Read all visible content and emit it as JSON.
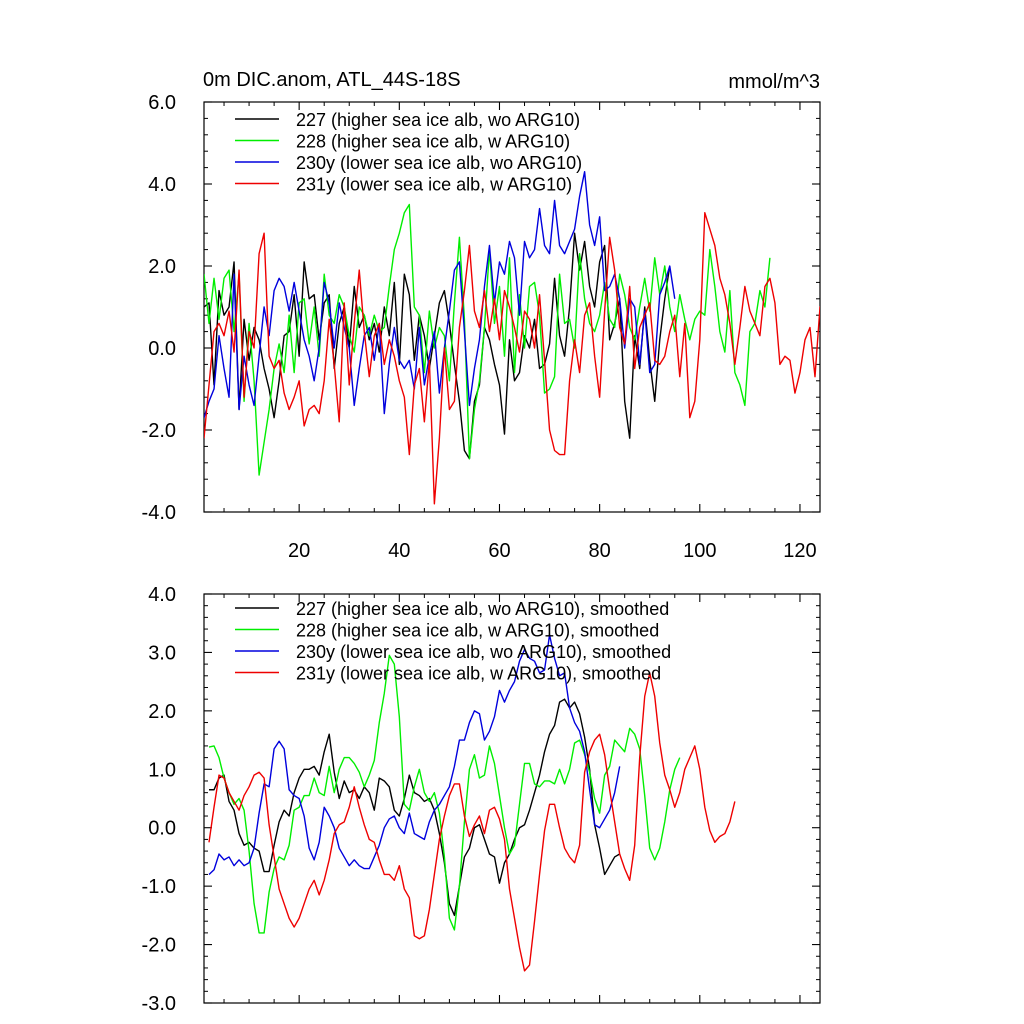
{
  "figure": {
    "title": "0m DIC.anom, ATL_44S-18S",
    "units": "mmol/m^3"
  },
  "chart_data": [
    {
      "type": "line",
      "title": "0m DIC.anom, ATL_44S-18S",
      "units_label": "mmol/m^3",
      "xlim": [
        1,
        124
      ],
      "ylim": [
        -4.0,
        6.0
      ],
      "x_ticks": [
        20,
        40,
        60,
        80,
        100,
        120
      ],
      "x_tick_labels": [
        "20",
        "40",
        "60",
        "80",
        "100",
        "120"
      ],
      "y_ticks": [
        -4.0,
        -2.0,
        0.0,
        2.0,
        4.0,
        6.0
      ],
      "y_tick_labels": [
        "-4.0",
        "-2.0",
        "0.0",
        "2.0",
        "4.0",
        "6.0"
      ],
      "legend_position": "top-left",
      "series": [
        {
          "name": "227 (higher sea ice alb, wo ARG10)",
          "color": "#000000",
          "x_start": 1,
          "values": [
            1.0,
            1.1,
            -0.9,
            1.4,
            0.8,
            1.0,
            2.1,
            -1.5,
            0.7,
            -0.3,
            0.5,
            0.2,
            -0.5,
            -1.0,
            -1.7,
            -0.8,
            0.3,
            0.4,
            1.3,
            -0.2,
            2.1,
            1.2,
            1.3,
            0.2,
            1.1,
            1.3,
            -0.5,
            0.6,
            1.0,
            0.0,
            1.5,
            0.5,
            0.8,
            0.2,
            0.6,
            -0.1,
            1.0,
            0.3,
            1.6,
            -0.4,
            1.8,
            1.3,
            -0.3,
            0.8,
            0.3,
            -0.5,
            0.3,
            1.1,
            1.4,
            0.6,
            -0.4,
            -1.3,
            -2.5,
            -2.7,
            -1.3,
            -0.9,
            0.5,
            0.2,
            -0.4,
            -0.9,
            -2.1,
            0.2,
            -0.8,
            -0.6,
            0.3,
            0.0,
            0.7,
            -0.5,
            -0.4,
            0.1,
            1.7,
            0.3,
            -0.2,
            1.0,
            2.8,
            1.9,
            2.6,
            1.5,
            1.0,
            2.1,
            2.5,
            0.2,
            0.6,
            1.2,
            -1.3,
            -2.2,
            0.3,
            -0.5,
            1.0,
            -0.3,
            -1.3,
            0.2,
            1.2,
            2.0
          ]
        },
        {
          "name": "228 (higher sea ice alb, w ARG10)",
          "color": "#00ee00",
          "x_start": 1,
          "values": [
            1.8,
            0.6,
            1.7,
            0.7,
            1.7,
            1.9,
            0.4,
            1.8,
            -1.3,
            0.6,
            -0.8,
            -3.1,
            -2.3,
            -1.5,
            -0.5,
            0.1,
            -0.6,
            0.8,
            -0.6,
            1.1,
            1.2,
            0.1,
            1.0,
            -0.2,
            1.8,
            0.8,
            0.6,
            1.3,
            1.0,
            0.3,
            -0.1,
            1.0,
            0.8,
            0.3,
            0.8,
            0.4,
            0.5,
            1.5,
            2.4,
            2.8,
            3.3,
            3.5,
            1.0,
            0.8,
            -0.6,
            0.9,
            0.0,
            0.5,
            0.3,
            -0.8,
            1.1,
            2.7,
            0.7,
            -2.7,
            -1.5,
            -0.8,
            0.5,
            2.4,
            0.6,
            1.5,
            -0.2,
            2.2,
            -0.6,
            1.3,
            0.0,
            1.5,
            1.6,
            0.8,
            -1.1,
            -1.0,
            -0.7,
            1.8,
            0.6,
            0.7,
            0.0,
            2.3,
            1.2,
            0.6,
            0.4,
            0.8,
            1.6,
            0.7,
            0.5,
            1.8,
            1.3,
            0.5,
            0.2,
            1.0,
            1.7,
            0.9,
            2.2,
            1.3,
            2.0,
            1.0,
            0.4,
            1.3,
            0.7,
            0.2,
            0.7,
            0.9,
            0.8,
            2.4,
            1.5,
            0.4,
            -0.1,
            1.4,
            -0.6,
            -0.9,
            -1.4,
            0.4,
            0.6,
            1.4,
            1.0,
            2.2
          ]
        },
        {
          "name": "230y (lower sea ice alb, wo ARG10)",
          "color": "#0000dd",
          "x_start": 1,
          "values": [
            -1.7,
            -1.3,
            -1.0,
            0.3,
            -0.5,
            -1.2,
            1.8,
            -1.5,
            -0.2,
            -0.9,
            -1.4,
            -0.2,
            1.0,
            0.3,
            1.4,
            1.7,
            1.5,
            0.9,
            1.6,
            0.9,
            0.2,
            -0.2,
            -0.8,
            0.0,
            1.6,
            1.1,
            0.0,
            1.1,
            0.5,
            0.0,
            -1.4,
            -0.5,
            0.3,
            0.5,
            -0.3,
            0.6,
            -1.6,
            -0.4,
            0.5,
            -0.3,
            -0.5,
            -0.3,
            -1.0,
            0.5,
            -0.9,
            -0.2,
            0.4,
            -1.1,
            0.0,
            0.9,
            1.9,
            2.1,
            0.4,
            -1.4,
            -0.5,
            0.2,
            1.5,
            2.5,
            1.1,
            2.1,
            1.8,
            2.6,
            2.2,
            0.8,
            2.6,
            2.2,
            2.4,
            3.4,
            2.5,
            2.3,
            3.6,
            2.5,
            2.3,
            2.6,
            2.9,
            3.7,
            4.3,
            3.0,
            2.5,
            3.2,
            1.4,
            1.5,
            1.8,
            1.2,
            0.0,
            1.2,
            1.0,
            -0.4,
            0.9,
            -0.6,
            -0.4,
            1.3,
            1.6,
            2.0,
            1.2
          ]
        },
        {
          "name": "231y (lower sea ice alb, w ARG10)",
          "color": "#ee0000",
          "x_start": 1,
          "values": [
            -2.2,
            -0.9,
            0.4,
            0.6,
            0.3,
            0.9,
            -0.1,
            1.9,
            -1.2,
            0.4,
            0.0,
            2.3,
            2.8,
            -0.2,
            -0.5,
            -0.3,
            -1.1,
            -1.5,
            -1.2,
            -0.8,
            -1.9,
            -1.5,
            -1.4,
            -1.6,
            -0.8,
            0.7,
            -0.4,
            -1.8,
            1.1,
            -0.9,
            0.6,
            1.9,
            0.4,
            -0.7,
            0.3,
            0.6,
            -0.4,
            0.2,
            -0.2,
            -0.8,
            -1.2,
            -2.6,
            -0.9,
            -0.5,
            -1.8,
            -0.3,
            -3.8,
            -2.2,
            0.0,
            -1.5,
            -1.3,
            0.5,
            1.4,
            2.5,
            0.9,
            0.5,
            1.4,
            0.4,
            1.2,
            0.2,
            1.4,
            1.0,
            0.5,
            -0.1,
            0.9,
            0.7,
            0.0,
            1.3,
            -0.3,
            -2.0,
            -2.5,
            -2.6,
            -2.6,
            -0.8,
            0.2,
            -0.6,
            0.8,
            1.1,
            -0.2,
            -1.2,
            0.9,
            2.7,
            1.9,
            0.5,
            0.1,
            1.5,
            -0.5,
            0.5,
            0.8,
            1.1,
            -0.3,
            -0.4,
            -0.2,
            0.4,
            0.8,
            -0.7,
            0.6,
            -1.7,
            -1.3,
            0.2,
            3.3,
            2.9,
            2.5,
            1.7,
            1.3,
            0.6,
            -0.4,
            0.5,
            1.5,
            0.9,
            0.6,
            0.3,
            1.5,
            1.7,
            1.1,
            -0.4,
            -0.2,
            -0.3,
            -1.1,
            -0.6,
            0.2,
            0.5,
            -0.7,
            1.0,
            0.8,
            0.8
          ]
        }
      ]
    },
    {
      "type": "line",
      "title": "",
      "xlim": [
        1,
        124
      ],
      "ylim": [
        -3.0,
        4.0
      ],
      "x_ticks": [
        20,
        40,
        60,
        80,
        100,
        120
      ],
      "x_tick_labels": [],
      "y_ticks": [
        -3.0,
        -2.0,
        -1.0,
        0.0,
        1.0,
        2.0,
        3.0,
        4.0
      ],
      "y_tick_labels": [
        "-3.0",
        "-2.0",
        "-1.0",
        "0.0",
        "1.0",
        "2.0",
        "3.0",
        "4.0"
      ],
      "legend_position": "top-left",
      "series": [
        {
          "name": "227 (higher sea ice alb, wo ARG10), smoothed",
          "color": "#000000",
          "x_start": 2,
          "values": [
            0.65,
            0.65,
            0.85,
            0.9,
            0.45,
            0.3,
            -0.1,
            -0.3,
            -0.25,
            -0.35,
            -0.4,
            -0.75,
            -0.75,
            -0.3,
            0.1,
            0.3,
            0.2,
            0.6,
            0.85,
            1.0,
            1.0,
            1.05,
            0.9,
            1.3,
            1.6,
            0.95,
            0.5,
            0.8,
            0.6,
            0.65,
            0.5,
            0.7,
            0.6,
            0.3,
            0.85,
            0.8,
            0.7,
            0.3,
            0.2,
            0.5,
            0.9,
            0.6,
            0.55,
            0.45,
            0.5,
            0.3,
            -0.1,
            -0.6,
            -1.3,
            -1.5,
            -1.0,
            -0.5,
            -0.35,
            0.0,
            0.05,
            -0.2,
            -0.45,
            -0.5,
            -0.95,
            -0.6,
            -0.45,
            -0.2,
            0.0,
            0.05,
            0.3,
            0.6,
            0.9,
            1.3,
            1.6,
            1.75,
            2.15,
            2.2,
            2.05,
            2.15,
            1.95,
            1.55,
            1.0,
            0.05,
            -0.35,
            -0.8,
            -0.65,
            -0.5,
            -0.45
          ]
        },
        {
          "name": "228 (higher sea ice alb, w ARG10), smoothed",
          "color": "#00ee00",
          "x_start": 2,
          "values": [
            1.38,
            1.4,
            1.2,
            0.85,
            0.6,
            0.4,
            0.5,
            0.3,
            -0.4,
            -1.3,
            -1.8,
            -1.8,
            -1.1,
            -0.7,
            -0.5,
            -0.55,
            -0.3,
            0.3,
            0.35,
            0.55,
            0.55,
            0.85,
            0.6,
            0.55,
            1.05,
            0.6,
            1.0,
            1.2,
            1.2,
            1.1,
            0.95,
            0.7,
            0.9,
            1.15,
            1.8,
            2.3,
            2.95,
            2.8,
            1.9,
            0.4,
            0.3,
            0.7,
            1.0,
            0.6,
            0.45,
            0.6,
            0.25,
            -0.5,
            -1.55,
            -1.75,
            -1.0,
            0.1,
            1.0,
            1.25,
            0.85,
            0.9,
            1.4,
            1.1,
            0.55,
            0.0,
            -0.45,
            -0.3,
            0.4,
            1.1,
            1.1,
            0.75,
            0.7,
            0.8,
            0.8,
            0.75,
            1.0,
            0.75,
            1.0,
            1.45,
            1.5,
            1.25,
            0.95,
            0.5,
            0.25,
            0.9,
            1.05,
            1.5,
            1.4,
            1.3,
            1.7,
            1.6,
            1.35,
            0.55,
            -0.35,
            -0.55,
            -0.35,
            0.1,
            0.65,
            1.0,
            1.2
          ]
        },
        {
          "name": "230y (lower sea ice alb, wo ARG10), smoothed",
          "color": "#0000dd",
          "x_start": 2,
          "values": [
            -0.8,
            -0.72,
            -0.45,
            -0.55,
            -0.5,
            -0.65,
            -0.55,
            -0.65,
            -0.6,
            -0.35,
            0.25,
            0.75,
            0.7,
            1.35,
            1.48,
            1.35,
            0.65,
            0.55,
            0.5,
            0.2,
            -0.35,
            -0.55,
            -0.25,
            0.35,
            0.2,
            0.0,
            -0.35,
            -0.5,
            -0.65,
            -0.55,
            -0.65,
            -0.7,
            -0.7,
            -0.5,
            -0.3,
            0.0,
            0.15,
            0.2,
            0.0,
            -0.1,
            0.25,
            -0.1,
            -0.15,
            -0.2,
            0.1,
            0.3,
            0.4,
            0.55,
            0.7,
            1.05,
            1.5,
            1.5,
            1.8,
            2.0,
            1.95,
            1.5,
            1.65,
            1.9,
            2.35,
            2.15,
            2.35,
            2.5,
            2.85,
            3.05,
            2.9,
            2.85,
            2.65,
            2.7,
            3.3,
            2.9,
            2.6,
            2.65,
            2.05,
            1.8,
            1.65,
            1.3,
            0.65,
            0.05,
            0.0,
            0.15,
            0.3,
            0.6,
            1.05
          ]
        },
        {
          "name": "231y (lower sea ice alb, w ARG10), smoothed",
          "color": "#ee0000",
          "x_start": 2,
          "values": [
            -0.25,
            0.35,
            0.9,
            0.85,
            0.6,
            0.45,
            0.3,
            0.55,
            0.7,
            0.9,
            0.95,
            0.85,
            0.05,
            -0.5,
            -1.05,
            -1.3,
            -1.55,
            -1.7,
            -1.55,
            -1.3,
            -1.05,
            -0.9,
            -1.15,
            -0.9,
            -0.55,
            -0.1,
            0.05,
            0.1,
            0.35,
            0.7,
            0.35,
            0.05,
            -0.2,
            -0.25,
            -0.55,
            -0.8,
            -0.8,
            -0.9,
            -0.65,
            -1.05,
            -1.2,
            -1.85,
            -1.9,
            -1.85,
            -1.4,
            -0.8,
            -0.2,
            0.2,
            0.55,
            0.75,
            0.75,
            0.2,
            -0.15,
            0.05,
            0.2,
            -0.1,
            0.3,
            0.35,
            0.15,
            -0.2,
            -1.05,
            -1.55,
            -2.05,
            -2.45,
            -2.35,
            -1.6,
            -0.8,
            -0.05,
            0.4,
            0.4,
            0.0,
            -0.35,
            -0.5,
            -0.6,
            -0.3,
            0.95,
            1.3,
            1.5,
            1.6,
            1.25,
            0.65,
            0.1,
            -0.45,
            -0.7,
            -0.9,
            -0.3,
            1.2,
            2.25,
            2.65,
            2.25,
            1.45,
            0.9,
            0.65,
            0.35,
            0.6,
            1.0,
            1.2,
            1.4,
            1.0,
            0.35,
            -0.05,
            -0.25,
            -0.15,
            -0.1,
            0.1,
            0.45
          ]
        }
      ]
    }
  ]
}
